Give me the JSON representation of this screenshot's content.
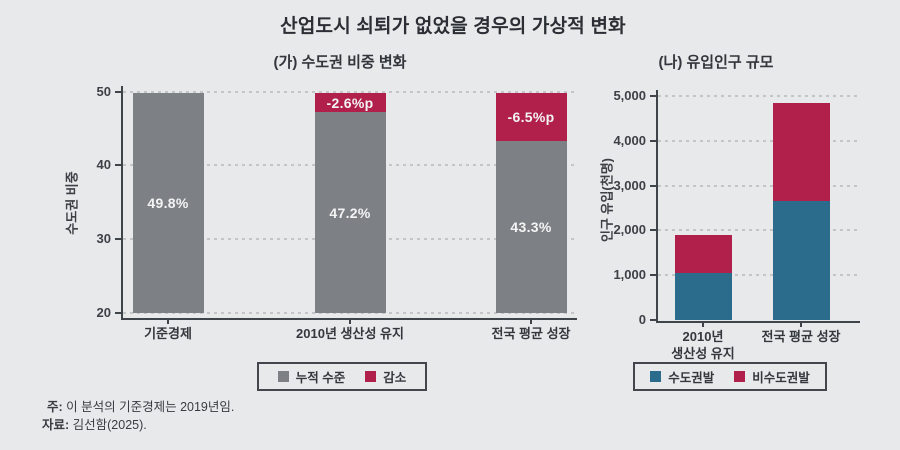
{
  "figure": {
    "title": "산업도시 쇠퇴가 없었을 경우의 가상적 변화"
  },
  "colors": {
    "background": "#e7e9ea",
    "bar_gray": "#7d8085",
    "bar_red": "#b11f4b",
    "bar_blue": "#2b6b8c",
    "axis": "#3f434a",
    "grid": "#c3c5c7",
    "bar_label_white": "#f3f4f4"
  },
  "chart_data": [
    {
      "type": "bar",
      "stacked": true,
      "title": "(가) 수도권 비중 변화",
      "ylabel": "수도권 비중",
      "xlabel": "",
      "categories": [
        "기준경제",
        "2010년 생산성 유지",
        "전국 평균 성장"
      ],
      "series": [
        {
          "name": "누적 수준",
          "color": "#7d8085",
          "values": [
            49.8,
            47.2,
            43.3
          ],
          "labels": [
            "49.8%",
            "47.2%",
            "43.3%"
          ]
        },
        {
          "name": "감소",
          "color": "#b11f4b",
          "values": [
            0,
            2.6,
            6.5
          ],
          "labels": [
            "",
            "-2.6%p",
            "-6.5%p"
          ]
        }
      ],
      "ylim": [
        20,
        50
      ],
      "yticks": [
        20,
        30,
        40,
        50
      ],
      "yticklabels": [
        "20",
        "30",
        "40",
        "50"
      ],
      "grid": "dashed-horizontal",
      "legend": [
        "누적 수준",
        "감소"
      ],
      "legend_position": "bottom"
    },
    {
      "type": "bar",
      "stacked": true,
      "title": "(나) 유입인구 규모",
      "ylabel": "인구 유입(천명)",
      "xlabel": "",
      "categories": [
        "2010년\n생산성 유지",
        "전국 평균 성장"
      ],
      "series": [
        {
          "name": "수도권발",
          "color": "#2b6b8c",
          "values": [
            1050,
            2650
          ],
          "labels": [
            "",
            ""
          ]
        },
        {
          "name": "비수도권발",
          "color": "#b11f4b",
          "values": [
            850,
            2200
          ],
          "labels": [
            "",
            ""
          ]
        }
      ],
      "ylim": [
        0,
        5000
      ],
      "yticks": [
        0,
        1000,
        2000,
        3000,
        4000,
        5000
      ],
      "yticklabels": [
        "0",
        "1,000",
        "2,000",
        "3,000",
        "4,000",
        "5,000"
      ],
      "grid": "dashed-horizontal",
      "legend": [
        "수도권발",
        "비수도권발"
      ],
      "legend_position": "bottom"
    }
  ],
  "notes": [
    {
      "label": "주:",
      "text": " 이 분석의 기준경제는 2019년임."
    },
    {
      "label": "자료:",
      "text": " 김선함(2025)."
    }
  ]
}
